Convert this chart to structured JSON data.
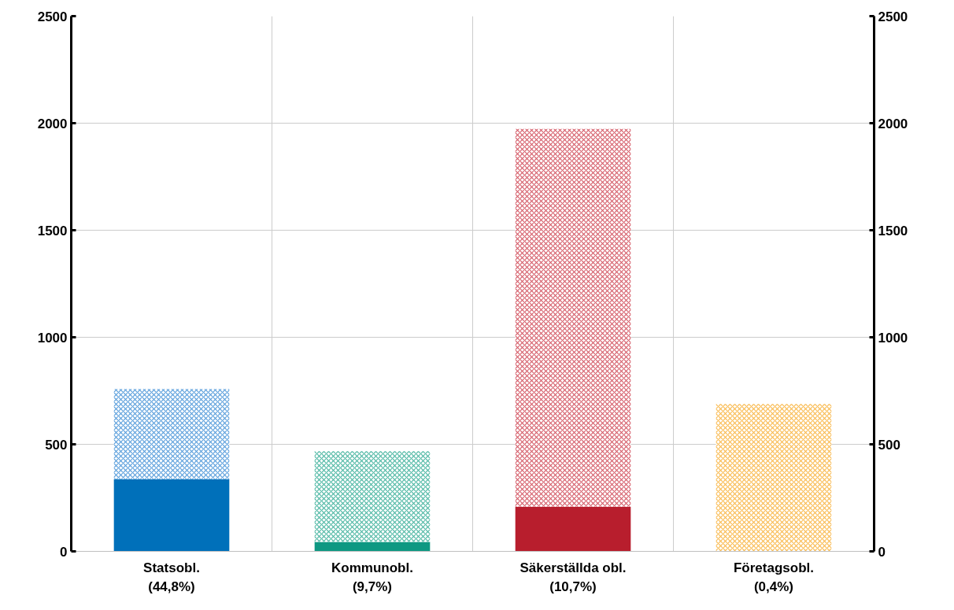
{
  "chart_data": {
    "type": "bar",
    "stacked": true,
    "categories": [
      "Statsobl.\n(44,8%)",
      "Kommunobl.\n(9,7%)",
      "Säkerställda obl.\n(10,7%)",
      "Företagsobl.\n(0,4%)"
    ],
    "series": [
      {
        "colors": [
          "#0070ba",
          "#0e9882",
          "#b81e2d",
          "#f5a623"
        ],
        "values": [
          337,
          44,
          209,
          0
        ]
      },
      {
        "colors": [
          "#5b9fdc",
          "#4fb8a4",
          "#d6606c",
          "#f9bb52"
        ],
        "values": [
          421,
          424,
          1764,
          688
        ]
      }
    ],
    "ylim": [
      0,
      2500
    ],
    "yticks": [
      0,
      500,
      1000,
      1500,
      2000,
      2500
    ],
    "y2lim": [
      0,
      2500
    ],
    "y2ticks": [
      0,
      500,
      1000,
      1500,
      2000,
      2500
    ],
    "grid": true
  }
}
